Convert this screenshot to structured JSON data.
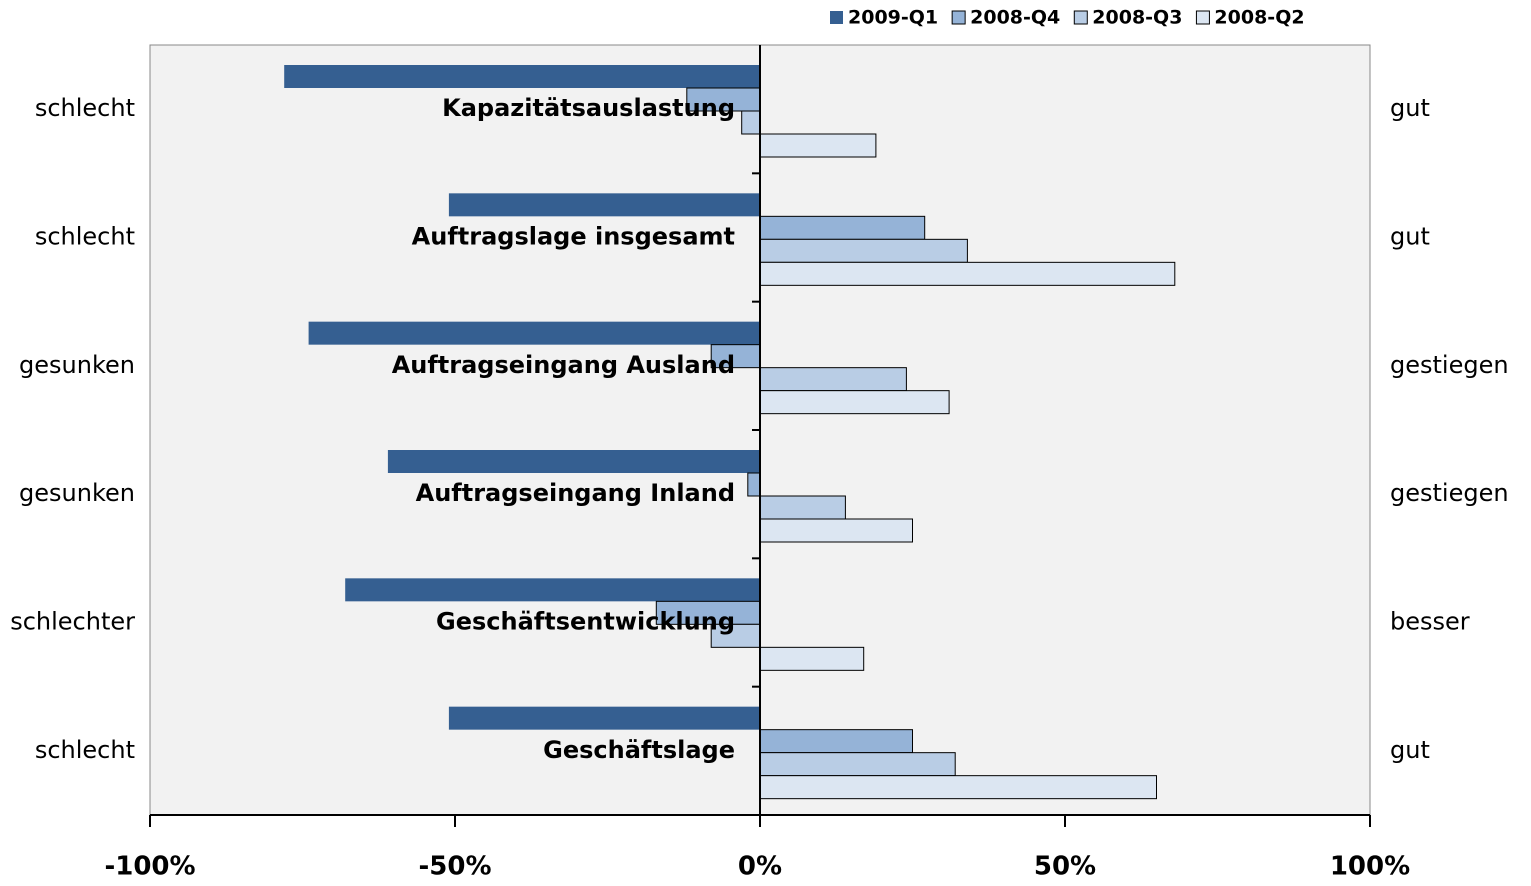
{
  "chart_data": {
    "type": "barh",
    "categories": [
      "Kapazitätsauslastung",
      "Auftragslage insgesamt",
      "Auftragseingang Ausland",
      "Auftragseingang Inland",
      "Geschäftsentwicklung",
      "Geschäftslage"
    ],
    "left_labels": [
      "schlecht",
      "schlecht",
      "gesunken",
      "gesunken",
      "schlechter",
      "schlecht"
    ],
    "right_labels": [
      "gut",
      "gut",
      "gestiegen",
      "gestiegen",
      "besser",
      "gut"
    ],
    "series": [
      {
        "name": "2009-Q1",
        "color": "#355f91",
        "values": [
          -78,
          -51,
          -74,
          -61,
          -68,
          -51
        ]
      },
      {
        "name": "2008-Q4",
        "color": "#95b3d7",
        "values": [
          -12,
          27,
          -8,
          -2,
          -17,
          25
        ]
      },
      {
        "name": "2008-Q3",
        "color": "#b9cde5",
        "values": [
          -3,
          34,
          24,
          14,
          -8,
          32
        ]
      },
      {
        "name": "2008-Q2",
        "color": "#dce6f2",
        "values": [
          19,
          68,
          31,
          25,
          17,
          65
        ]
      }
    ],
    "xlim": [
      -100,
      100
    ],
    "xticks": [
      {
        "value": -100,
        "label": "-100%"
      },
      {
        "value": -50,
        "label": "-50%"
      },
      {
        "value": 0,
        "label": "0%"
      },
      {
        "value": 50,
        "label": "50%"
      },
      {
        "value": 100,
        "label": "100%"
      }
    ],
    "legend": "top-right"
  }
}
